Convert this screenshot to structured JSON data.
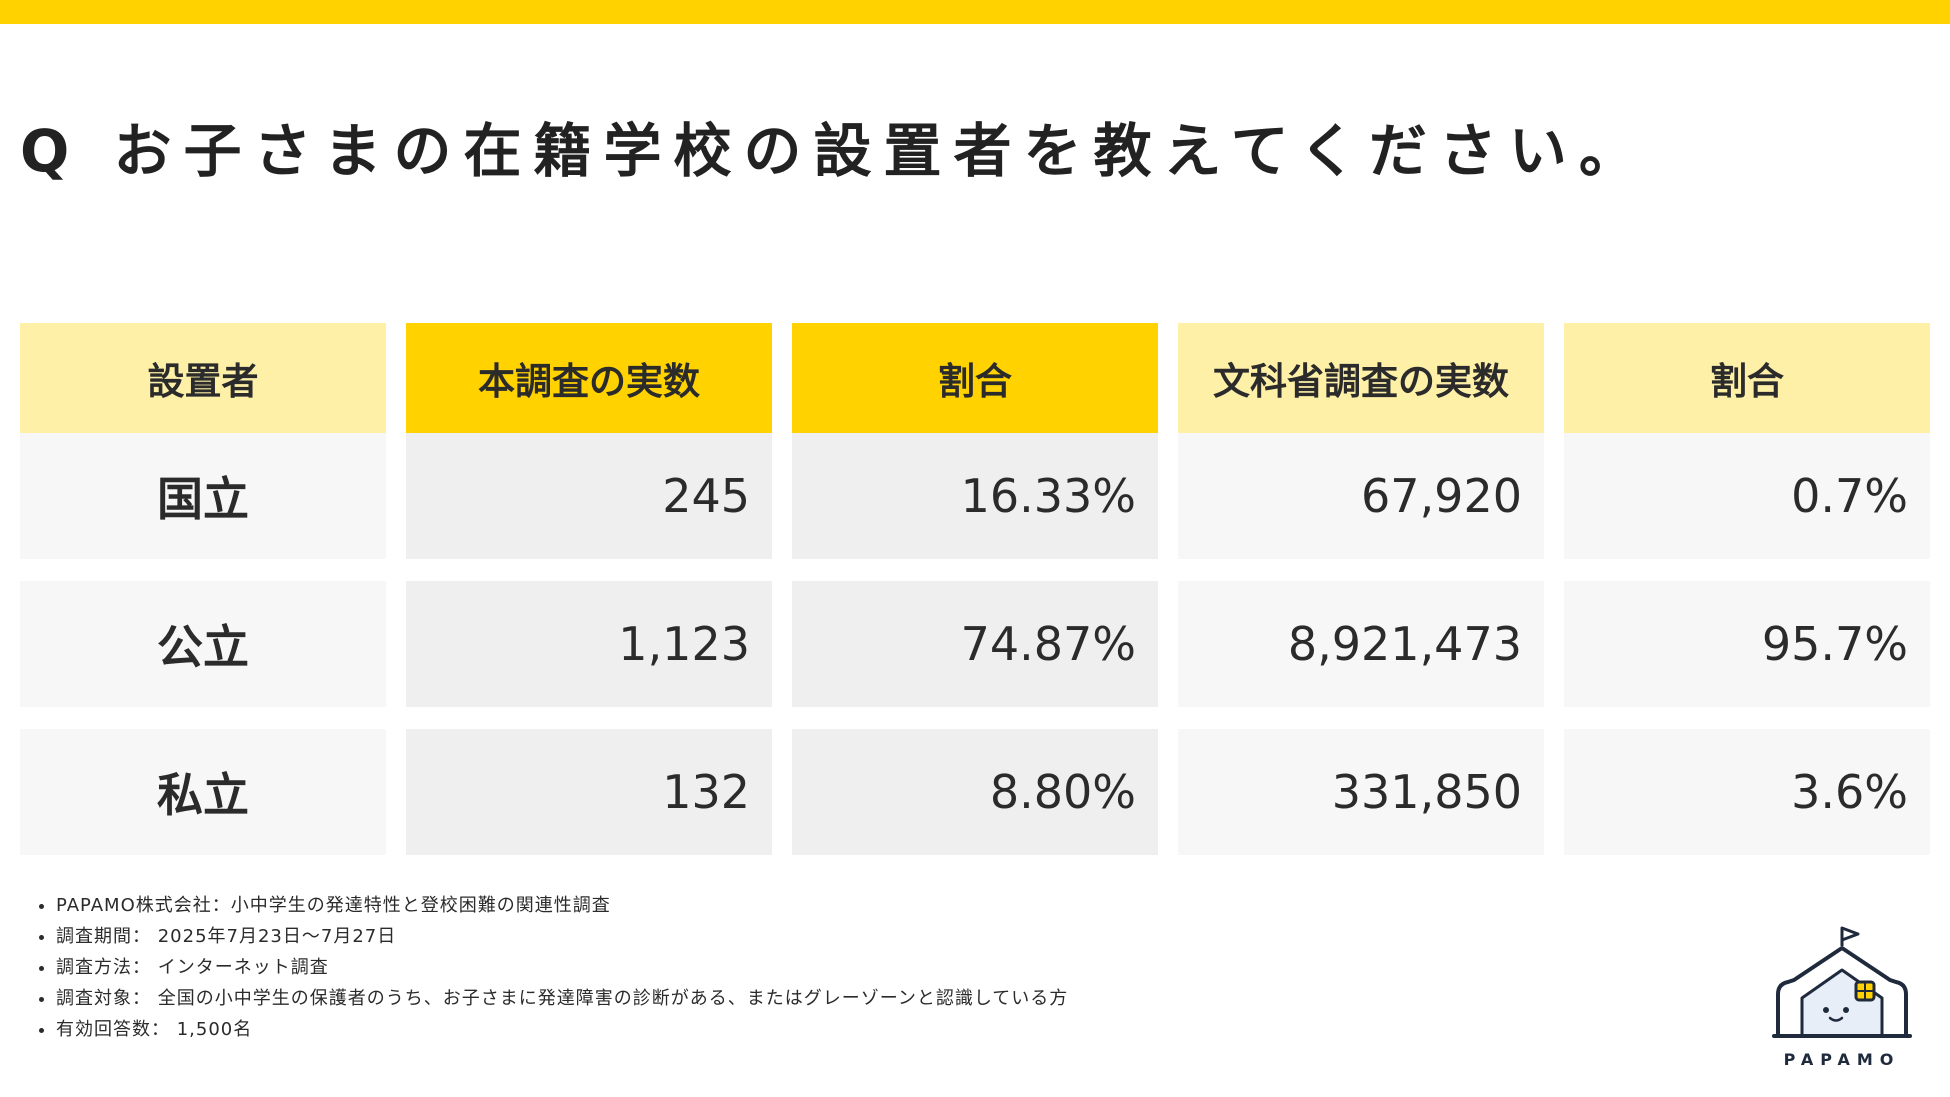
{
  "title": "Q お子さまの在籍学校の設置者を教えてください。",
  "table": {
    "headers": [
      "設置者",
      "本調査の実数",
      "割合",
      "文科省調査の実数",
      "割合"
    ],
    "rows": [
      {
        "label": "国立",
        "survey_count": "245",
        "survey_ratio": "16.33%",
        "mext_count": "67,920",
        "mext_ratio": "0.7%"
      },
      {
        "label": "公立",
        "survey_count": "1,123",
        "survey_ratio": "74.87%",
        "mext_count": "8,921,473",
        "mext_ratio": "95.7%"
      },
      {
        "label": "私立",
        "survey_count": "132",
        "survey_ratio": "8.80%",
        "mext_count": "331,850",
        "mext_ratio": "3.6%"
      }
    ]
  },
  "notes": [
    "PAPAMO株式会社：小中学生の発達特性と登校困難の関連性調査",
    "調査期間： 2025年7月23日〜7月27日",
    "調査方法： インターネット調査",
    "調査対象： 全国の小中学生の保護者のうち、お子さまに発達障害の診断がある、またはグレーゾーンと認識している方",
    "有効回答数： 1,500名"
  ],
  "logo": {
    "icon": "papamo-house-icon",
    "text": "PAPAMO"
  },
  "colors": {
    "accent": "#FFD200",
    "accent_light": "#FFF0A8",
    "row_light": "#F7F7F7",
    "row_gray": "#EFEFEF"
  }
}
